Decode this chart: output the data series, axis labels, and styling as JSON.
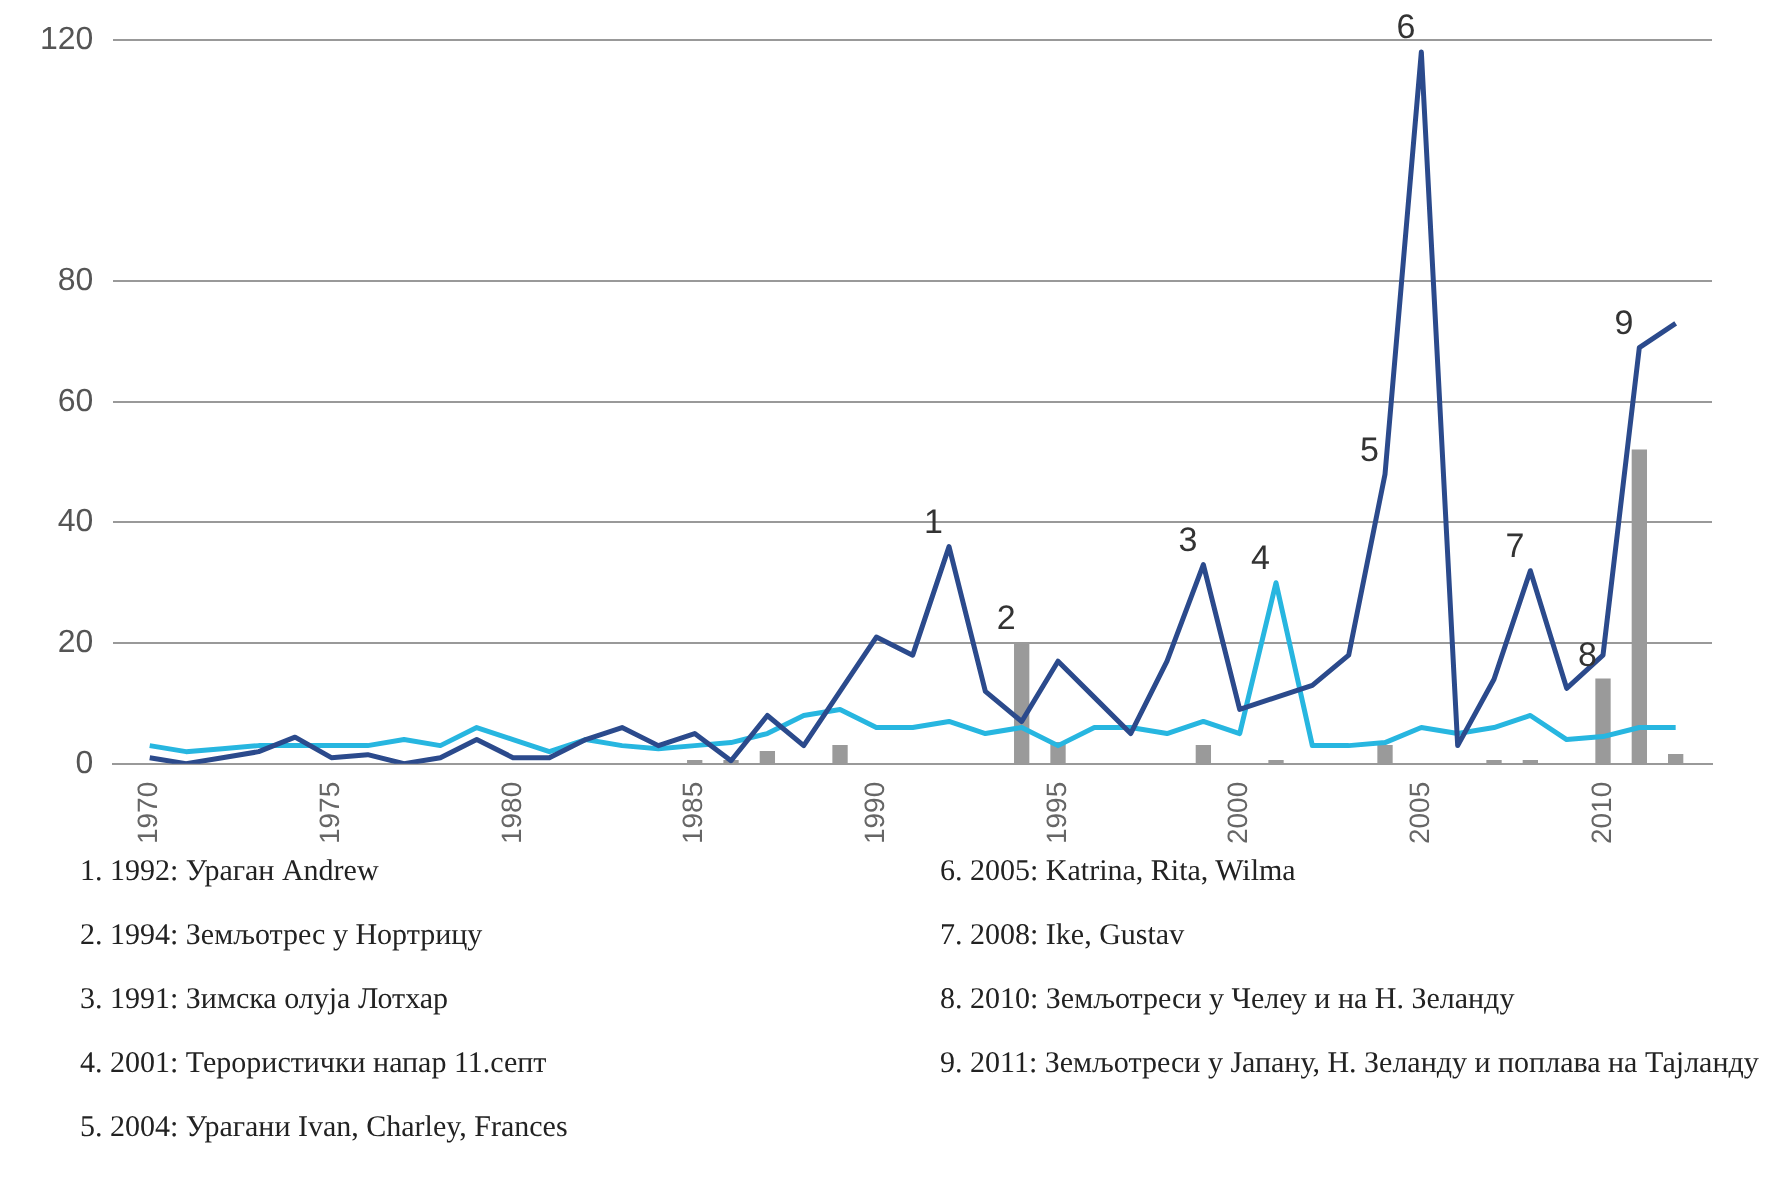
{
  "chart_data": {
    "type": "line",
    "x": [
      1970,
      1971,
      1972,
      1973,
      1974,
      1975,
      1976,
      1977,
      1978,
      1979,
      1980,
      1981,
      1982,
      1983,
      1984,
      1985,
      1986,
      1987,
      1988,
      1989,
      1990,
      1991,
      1992,
      1993,
      1994,
      1995,
      1996,
      1997,
      1998,
      1999,
      2000,
      2001,
      2002,
      2003,
      2004,
      2005,
      2006,
      2007,
      2008,
      2009,
      2010,
      2011,
      2012
    ],
    "series": [
      {
        "type": "bar",
        "color": "#9a9a9a",
        "values": [
          null,
          null,
          null,
          null,
          null,
          null,
          null,
          null,
          null,
          null,
          null,
          null,
          null,
          null,
          null,
          0.5,
          0.5,
          2,
          null,
          3,
          null,
          null,
          null,
          null,
          20,
          3.5,
          null,
          null,
          null,
          3,
          null,
          0.5,
          null,
          null,
          3,
          null,
          null,
          0.5,
          0.5,
          null,
          14,
          52,
          1.5
        ]
      },
      {
        "color": "#2b4a8c",
        "values": [
          1,
          0,
          1,
          2,
          4.4,
          1,
          1.5,
          0,
          1,
          4,
          1,
          1,
          4,
          6,
          3,
          5,
          0.5,
          8,
          3,
          12,
          21,
          18,
          36,
          12,
          7,
          17,
          11,
          5,
          17,
          33,
          9,
          11,
          13,
          18,
          48,
          118,
          3,
          14,
          32,
          12.5,
          18,
          69,
          73
        ]
      },
      {
        "color": "#27b6e0",
        "values": [
          3,
          2,
          2.5,
          3,
          3,
          3,
          3,
          4,
          3,
          6,
          4,
          2,
          4,
          3,
          2.5,
          3,
          3.5,
          5,
          8,
          9,
          6,
          6,
          7,
          5,
          6,
          3,
          6,
          6,
          5,
          7,
          5,
          30,
          3,
          3,
          3.5,
          6,
          5,
          6,
          8,
          4,
          4.5,
          6,
          6
        ]
      }
    ],
    "xlim": [
      1969,
      2013
    ],
    "xticks": [
      1970,
      1975,
      1980,
      1985,
      1990,
      1995,
      2000,
      2005,
      2010
    ],
    "ylim": [
      0,
      120
    ],
    "yticks": [
      0,
      20,
      40,
      60,
      80,
      120
    ],
    "grid": "y",
    "legend": false,
    "marker": "none",
    "line_style": "solid",
    "annotations": [
      {
        "text": "1",
        "x": 1992,
        "y": 36
      },
      {
        "text": "2",
        "x": 1994,
        "y": 20
      },
      {
        "text": "3",
        "x": 1999,
        "y": 33
      },
      {
        "text": "4",
        "x": 2001,
        "y": 30
      },
      {
        "text": "5",
        "x": 2004,
        "y": 48
      },
      {
        "text": "6",
        "x": 2005,
        "y": 118
      },
      {
        "text": "7",
        "x": 2008,
        "y": 32
      },
      {
        "text": "8",
        "x": 2010,
        "y": 14
      },
      {
        "text": "9",
        "x": 2011,
        "y": 69
      },
      "1. 1992: Ураган Andrew",
      "2. 1994: Земљотрес у Нортрицу",
      "3. 1991: Зимска олуја Лотхар",
      "4. 2001: Терористички напар 11.септ",
      "5. 2004: Урагани Ivan, Charley, Frances",
      "6. 2005: Katrina, Rita, Wilma",
      "7. 2008: Ike, Gustav",
      "8. 2010: Земљотреси у Челеу и на Н. Зеланду",
      "9. 2011: Земљотреси у Јапану, Н. Зеланду и поплава на Тајланду"
    ]
  }
}
